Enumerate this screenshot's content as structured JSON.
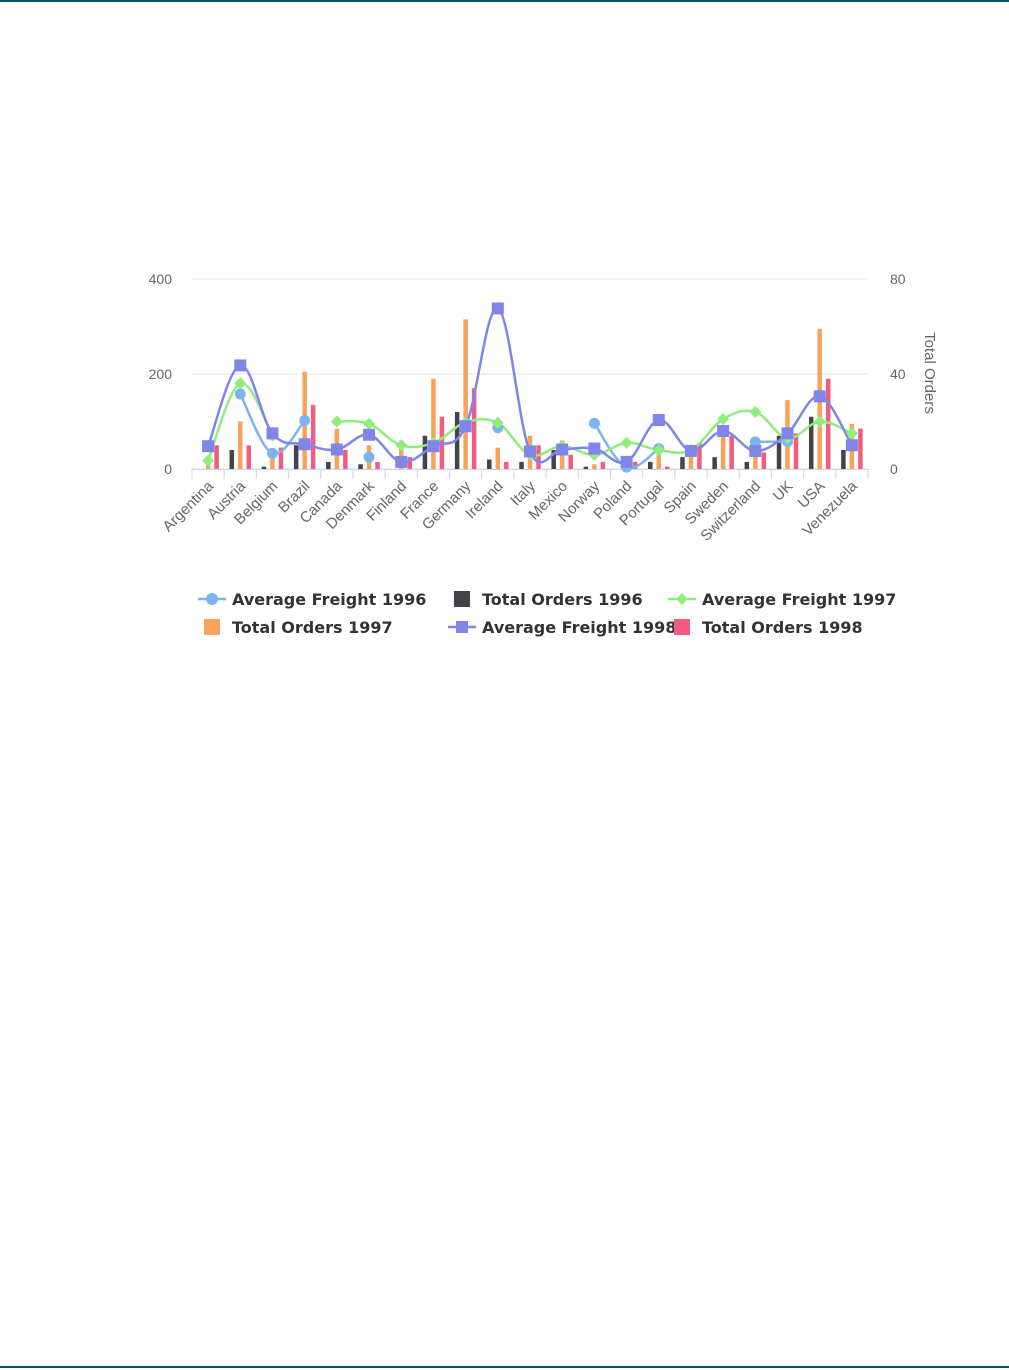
{
  "chart_data": {
    "type": "bar",
    "title": "",
    "xlabel": "",
    "ylabel_left": "",
    "ylabel_right": "Total Orders",
    "ylim_left": [
      0,
      400
    ],
    "ylim_right": [
      0,
      80
    ],
    "yticks_left": [
      "0",
      "200",
      "400"
    ],
    "yticks_right": [
      "0",
      "40",
      "80"
    ],
    "grid": true,
    "legend_position": "bottom",
    "categories": [
      "Argentina",
      "Austria",
      "Belgium",
      "Brazil",
      "Canada",
      "Denmark",
      "Finland",
      "France",
      "Germany",
      "Ireland",
      "Italy",
      "Mexico",
      "Norway",
      "Poland",
      "Portugal",
      "Spain",
      "Sweden",
      "Switzerland",
      "UK",
      "USA",
      "Venezuela"
    ],
    "series": [
      {
        "name": "Average Freight 1996",
        "kind": "line",
        "axis": "left",
        "color": "#7cb5ec",
        "marker": "circle",
        "values": [
          null,
          158,
          33,
          102,
          null,
          25,
          null,
          null,
          null,
          87,
          null,
          null,
          96,
          4,
          43,
          null,
          null,
          57,
          58,
          null,
          null
        ]
      },
      {
        "name": "Total Orders 1996",
        "kind": "bar",
        "axis": "right",
        "color": "#434348",
        "values": [
          0,
          8,
          1,
          10,
          3,
          2,
          0,
          14,
          24,
          4,
          3,
          8,
          1,
          0,
          3,
          5,
          5,
          3,
          14,
          22,
          8
        ]
      },
      {
        "name": "Average Freight 1997",
        "kind": "line",
        "axis": "left",
        "color": "#90ed7d",
        "marker": "diamond",
        "values": [
          18,
          180,
          70,
          null,
          100,
          95,
          50,
          55,
          98,
          97,
          30,
          48,
          30,
          55,
          40,
          40,
          105,
          120,
          65,
          100,
          75
        ]
      },
      {
        "name": "Total Orders 1997",
        "kind": "bar",
        "axis": "right",
        "color": "#f7a35c",
        "values": [
          5,
          20,
          7,
          41,
          17,
          10,
          12,
          38,
          63,
          9,
          14,
          12,
          2,
          2,
          7,
          10,
          14,
          6,
          29,
          59,
          19
        ]
      },
      {
        "name": "Average Freight 1998",
        "kind": "line",
        "axis": "left",
        "color": "#8085e9",
        "marker": "square",
        "values": [
          48,
          218,
          75,
          52,
          41,
          72,
          15,
          48,
          90,
          338,
          37,
          41,
          43,
          15,
          103,
          38,
          80,
          38,
          75,
          153,
          50
        ]
      },
      {
        "name": "Total Orders 1998",
        "kind": "bar",
        "axis": "right",
        "color": "#f15c80",
        "values": [
          10,
          10,
          9,
          27,
          8,
          3,
          5,
          22,
          34,
          3,
          10,
          6,
          3,
          3,
          1,
          11,
          14,
          7,
          15,
          38,
          17
        ]
      }
    ]
  }
}
